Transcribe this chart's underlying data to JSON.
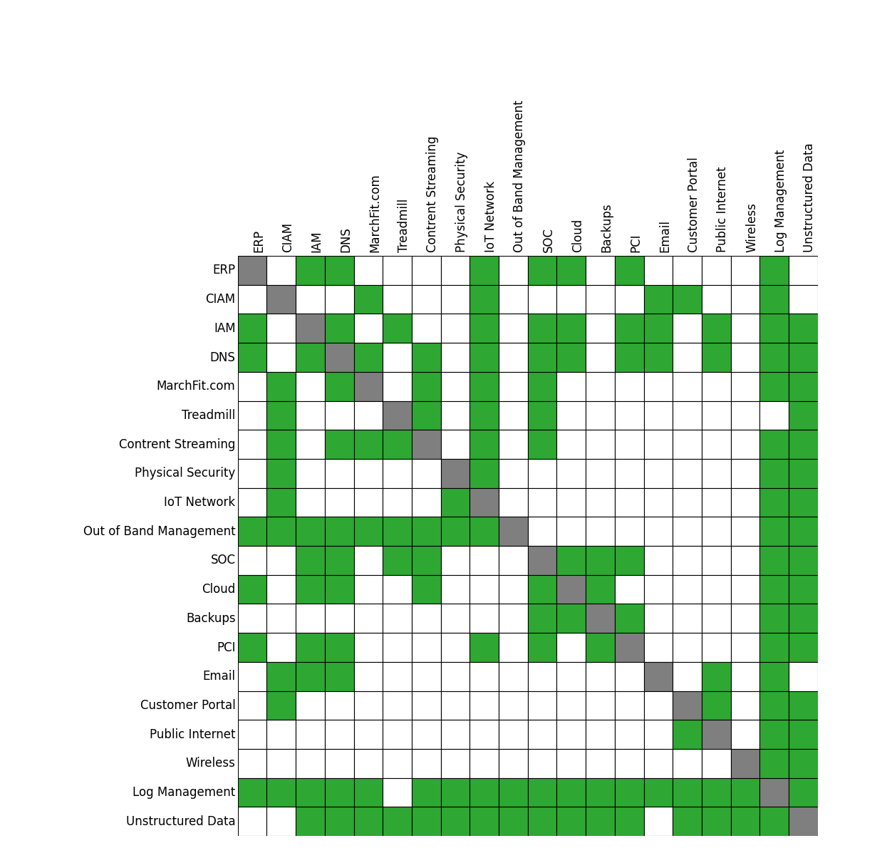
{
  "labels": [
    "ERP",
    "CIAM",
    "IAM",
    "DNS",
    "MarchFit.com",
    "Treadmill",
    "Contrent Streaming",
    "Physical Security",
    "IoT Network",
    "Out of Band Management",
    "SOC",
    "Cloud",
    "Backups",
    "PCI",
    "Email",
    "Customer Portal",
    "Public Internet",
    "Wireless",
    "Log Management",
    "Unstructured Data"
  ],
  "matrix": [
    [
      2,
      0,
      1,
      1,
      0,
      0,
      0,
      0,
      1,
      0,
      1,
      1,
      0,
      1,
      0,
      0,
      0,
      0,
      1,
      0
    ],
    [
      0,
      2,
      0,
      0,
      1,
      0,
      0,
      0,
      1,
      0,
      0,
      0,
      0,
      0,
      1,
      1,
      0,
      0,
      1,
      0
    ],
    [
      1,
      0,
      2,
      1,
      0,
      1,
      0,
      0,
      1,
      0,
      1,
      1,
      0,
      1,
      1,
      0,
      1,
      0,
      1,
      1
    ],
    [
      1,
      0,
      1,
      2,
      1,
      0,
      1,
      0,
      1,
      0,
      1,
      1,
      0,
      1,
      1,
      0,
      1,
      0,
      1,
      1
    ],
    [
      0,
      1,
      0,
      1,
      2,
      0,
      1,
      0,
      1,
      0,
      1,
      0,
      0,
      0,
      0,
      0,
      0,
      0,
      1,
      1
    ],
    [
      0,
      1,
      0,
      0,
      0,
      2,
      1,
      0,
      1,
      0,
      1,
      0,
      0,
      0,
      0,
      0,
      0,
      0,
      0,
      1
    ],
    [
      0,
      1,
      0,
      1,
      1,
      1,
      2,
      0,
      1,
      0,
      1,
      0,
      0,
      0,
      0,
      0,
      0,
      0,
      1,
      1
    ],
    [
      0,
      1,
      0,
      0,
      0,
      0,
      0,
      2,
      1,
      0,
      0,
      0,
      0,
      0,
      0,
      0,
      0,
      0,
      1,
      1
    ],
    [
      0,
      1,
      0,
      0,
      0,
      0,
      0,
      1,
      2,
      0,
      0,
      0,
      0,
      0,
      0,
      0,
      0,
      0,
      1,
      1
    ],
    [
      1,
      1,
      1,
      1,
      1,
      1,
      1,
      1,
      1,
      2,
      0,
      0,
      0,
      0,
      0,
      0,
      0,
      0,
      1,
      1
    ],
    [
      0,
      0,
      1,
      1,
      0,
      1,
      1,
      0,
      0,
      0,
      2,
      1,
      1,
      1,
      0,
      0,
      0,
      0,
      1,
      1
    ],
    [
      1,
      0,
      1,
      1,
      0,
      0,
      1,
      0,
      0,
      0,
      1,
      2,
      1,
      0,
      0,
      0,
      0,
      0,
      1,
      1
    ],
    [
      0,
      0,
      0,
      0,
      0,
      0,
      0,
      0,
      0,
      0,
      1,
      1,
      2,
      1,
      0,
      0,
      0,
      0,
      1,
      1
    ],
    [
      1,
      0,
      1,
      1,
      0,
      0,
      0,
      0,
      1,
      0,
      1,
      0,
      1,
      2,
      0,
      0,
      0,
      0,
      1,
      1
    ],
    [
      0,
      1,
      1,
      1,
      0,
      0,
      0,
      0,
      0,
      0,
      0,
      0,
      0,
      0,
      2,
      0,
      1,
      0,
      1,
      0
    ],
    [
      0,
      1,
      0,
      0,
      0,
      0,
      0,
      0,
      0,
      0,
      0,
      0,
      0,
      0,
      0,
      2,
      1,
      0,
      1,
      1
    ],
    [
      0,
      0,
      0,
      0,
      0,
      0,
      0,
      0,
      0,
      0,
      0,
      0,
      0,
      0,
      0,
      1,
      2,
      0,
      1,
      1
    ],
    [
      0,
      0,
      0,
      0,
      0,
      0,
      0,
      0,
      0,
      0,
      0,
      0,
      0,
      0,
      0,
      0,
      0,
      2,
      1,
      1
    ],
    [
      1,
      1,
      1,
      1,
      1,
      0,
      1,
      1,
      1,
      1,
      1,
      1,
      1,
      1,
      1,
      1,
      1,
      1,
      2,
      1
    ],
    [
      0,
      0,
      1,
      1,
      1,
      1,
      1,
      1,
      1,
      1,
      1,
      1,
      1,
      1,
      0,
      1,
      1,
      1,
      1,
      2
    ]
  ],
  "green_color": "#2ea832",
  "gray_color": "#7f7f7f",
  "white_color": "#ffffff",
  "line_color": "#000000",
  "background_color": "#ffffff",
  "label_fontsize": 12,
  "figsize": [
    12.45,
    11.97
  ],
  "dpi": 100
}
